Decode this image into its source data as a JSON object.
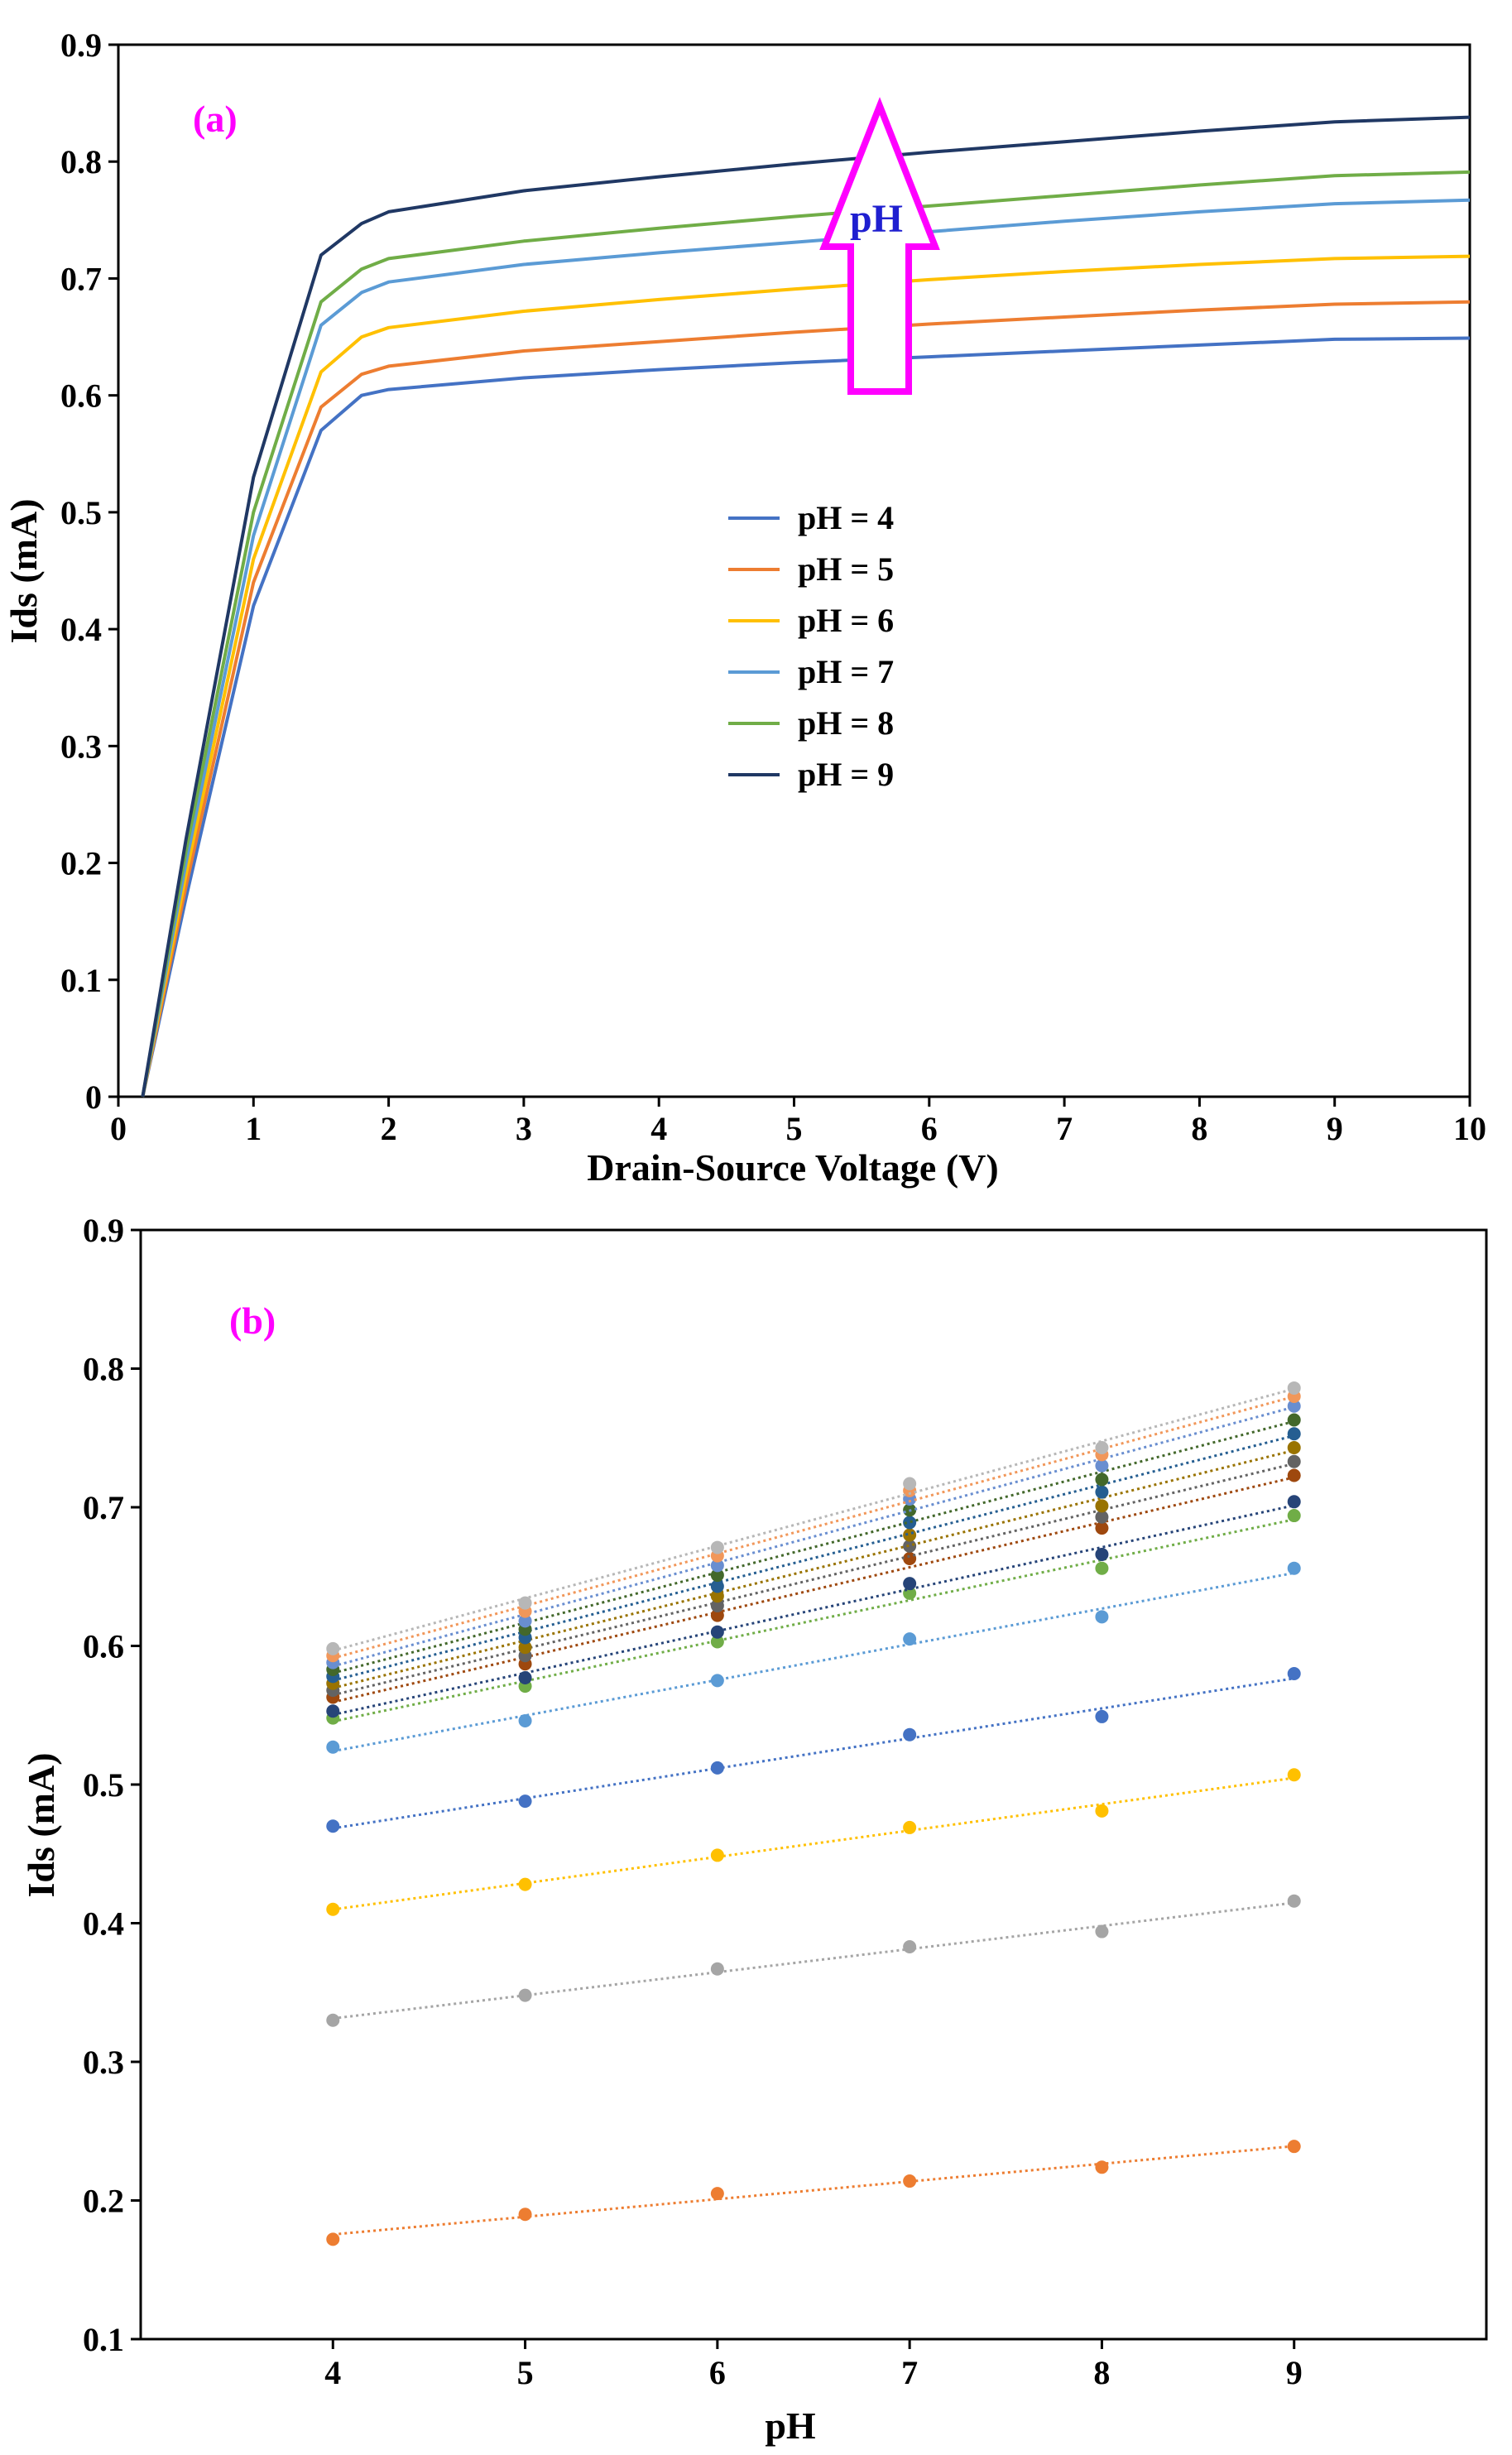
{
  "chart_data": [
    {
      "type": "line",
      "panel_label": "(a)",
      "xlabel": "Drain-Source Voltage (V)",
      "ylabel": "Ids (mA)",
      "xlim": [
        0,
        10
      ],
      "ylim": [
        0,
        0.9
      ],
      "xticks": [
        "0",
        "1",
        "2",
        "3",
        "4",
        "5",
        "6",
        "7",
        "8",
        "9",
        "10"
      ],
      "yticks": [
        "0",
        "0.1",
        "0.2",
        "0.3",
        "0.4",
        "0.5",
        "0.6",
        "0.7",
        "0.8",
        "0.9"
      ],
      "grid": false,
      "legend_position": "center",
      "annotation": {
        "text": "pH",
        "arrow": "up",
        "color": "#ff00ff",
        "text_color": "#1f1fd0"
      },
      "series": [
        {
          "name": "pH = 4",
          "color": "#4472c4",
          "x": [
            0.18,
            0.5,
            1.0,
            1.5,
            1.8,
            2.0,
            3.0,
            4.0,
            5.0,
            6.0,
            7.0,
            8.0,
            9.0,
            10.0
          ],
          "values": [
            0.0,
            0.17,
            0.42,
            0.57,
            0.6,
            0.605,
            0.615,
            0.622,
            0.628,
            0.633,
            0.638,
            0.643,
            0.648,
            0.649
          ]
        },
        {
          "name": "pH = 5",
          "color": "#ed7d31",
          "x": [
            0.18,
            0.5,
            1.0,
            1.5,
            1.8,
            2.0,
            3.0,
            4.0,
            5.0,
            6.0,
            7.0,
            8.0,
            9.0,
            10.0
          ],
          "values": [
            0.0,
            0.18,
            0.44,
            0.59,
            0.618,
            0.625,
            0.638,
            0.646,
            0.654,
            0.661,
            0.667,
            0.673,
            0.678,
            0.68
          ]
        },
        {
          "name": "pH = 6",
          "color": "#ffc000",
          "x": [
            0.18,
            0.5,
            1.0,
            1.5,
            1.8,
            2.0,
            3.0,
            4.0,
            5.0,
            6.0,
            7.0,
            8.0,
            9.0,
            10.0
          ],
          "values": [
            0.0,
            0.19,
            0.46,
            0.62,
            0.65,
            0.658,
            0.672,
            0.682,
            0.691,
            0.699,
            0.706,
            0.712,
            0.717,
            0.719
          ]
        },
        {
          "name": "pH = 7",
          "color": "#5b9bd5",
          "x": [
            0.18,
            0.5,
            1.0,
            1.5,
            1.8,
            2.0,
            3.0,
            4.0,
            5.0,
            6.0,
            7.0,
            8.0,
            9.0,
            10.0
          ],
          "values": [
            0.0,
            0.2,
            0.48,
            0.66,
            0.688,
            0.697,
            0.712,
            0.722,
            0.731,
            0.74,
            0.749,
            0.757,
            0.764,
            0.767
          ]
        },
        {
          "name": "pH = 8",
          "color": "#70ad47",
          "x": [
            0.18,
            0.5,
            1.0,
            1.5,
            1.8,
            2.0,
            3.0,
            4.0,
            5.0,
            6.0,
            7.0,
            8.0,
            9.0,
            10.0
          ],
          "values": [
            0.0,
            0.21,
            0.5,
            0.68,
            0.708,
            0.717,
            0.732,
            0.743,
            0.753,
            0.762,
            0.771,
            0.78,
            0.788,
            0.791
          ]
        },
        {
          "name": "pH = 9",
          "color": "#203864",
          "x": [
            0.18,
            0.5,
            1.0,
            1.5,
            1.8,
            2.0,
            3.0,
            4.0,
            5.0,
            6.0,
            7.0,
            8.0,
            9.0,
            10.0
          ],
          "values": [
            0.0,
            0.22,
            0.53,
            0.72,
            0.747,
            0.757,
            0.775,
            0.787,
            0.798,
            0.808,
            0.817,
            0.826,
            0.834,
            0.838
          ]
        }
      ]
    },
    {
      "type": "scatter",
      "panel_label": "(b)",
      "xlabel": "pH",
      "ylabel": "Ids (mA)",
      "xlim": [
        3,
        10
      ],
      "ylim": [
        0.1,
        0.9
      ],
      "x": [
        4,
        5,
        6,
        7,
        8,
        9
      ],
      "xticks": [
        "4",
        "5",
        "6",
        "7",
        "8",
        "9"
      ],
      "yticks": [
        "0.1",
        "0.2",
        "0.3",
        "0.4",
        "0.5",
        "0.6",
        "0.7",
        "0.8",
        "0.9"
      ],
      "grid": false,
      "trendline": "linear, dotted",
      "series": [
        {
          "color": "#ed7d31",
          "values": [
            0.172,
            0.19,
            0.205,
            0.214,
            0.224,
            0.239
          ]
        },
        {
          "color": "#a5a5a5",
          "values": [
            0.33,
            0.348,
            0.367,
            0.383,
            0.394,
            0.416
          ]
        },
        {
          "color": "#ffc000",
          "values": [
            0.41,
            0.428,
            0.449,
            0.469,
            0.481,
            0.507
          ]
        },
        {
          "color": "#4472c4",
          "values": [
            0.47,
            0.488,
            0.512,
            0.536,
            0.549,
            0.58
          ]
        },
        {
          "color": "#5b9bd5",
          "values": [
            0.527,
            0.546,
            0.575,
            0.605,
            0.621,
            0.656
          ]
        },
        {
          "color": "#70ad47",
          "values": [
            0.548,
            0.571,
            0.603,
            0.638,
            0.656,
            0.694
          ]
        },
        {
          "color": "#264478",
          "values": [
            0.553,
            0.577,
            0.61,
            0.645,
            0.666,
            0.704
          ]
        },
        {
          "color": "#9e480e",
          "values": [
            0.563,
            0.587,
            0.622,
            0.663,
            0.685,
            0.723
          ]
        },
        {
          "color": "#636363",
          "values": [
            0.568,
            0.593,
            0.629,
            0.672,
            0.693,
            0.733
          ]
        },
        {
          "color": "#997300",
          "values": [
            0.573,
            0.599,
            0.636,
            0.68,
            0.701,
            0.743
          ]
        },
        {
          "color": "#255e91",
          "values": [
            0.578,
            0.606,
            0.643,
            0.689,
            0.711,
            0.753
          ]
        },
        {
          "color": "#43682b",
          "values": [
            0.583,
            0.612,
            0.651,
            0.698,
            0.72,
            0.763
          ]
        },
        {
          "color": "#698ed0",
          "values": [
            0.588,
            0.618,
            0.658,
            0.706,
            0.73,
            0.773
          ]
        },
        {
          "color": "#f1975a",
          "values": [
            0.593,
            0.625,
            0.665,
            0.712,
            0.738,
            0.78
          ]
        },
        {
          "color": "#b7b7b7",
          "values": [
            0.598,
            0.631,
            0.671,
            0.717,
            0.743,
            0.786
          ]
        }
      ]
    }
  ]
}
